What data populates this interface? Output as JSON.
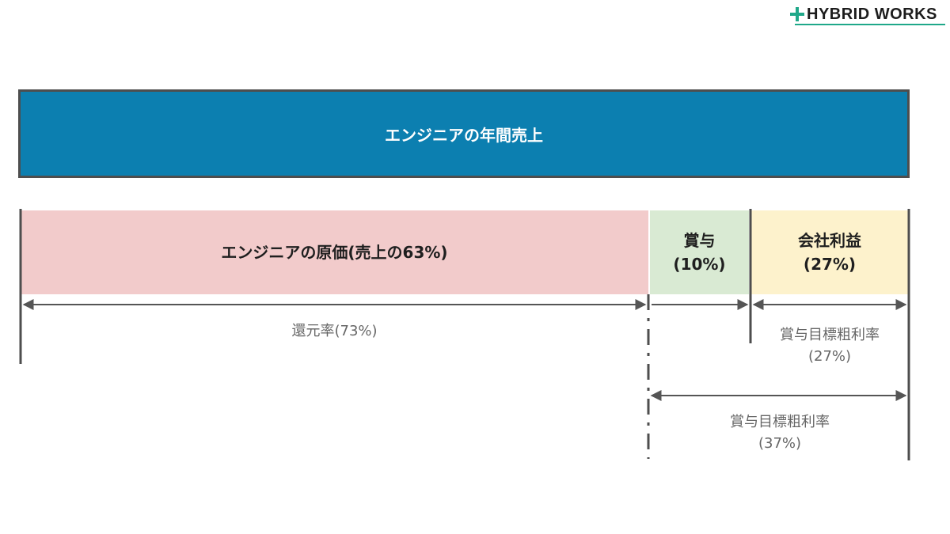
{
  "logo": {
    "text": "HYBRID WORKS",
    "accent_color": "#1fa889"
  },
  "revenue_bar": {
    "label": "エンジニアの年間売上",
    "color": "#0c7fb0"
  },
  "segments": {
    "cost": {
      "label": "エンジニアの原価(売上の63%)",
      "color": "#f2cbcb"
    },
    "bonus": {
      "line1": "賞与",
      "line2": "(10%)",
      "color": "#d9ead3"
    },
    "profit": {
      "line1": "会社利益",
      "line2": "(27%)",
      "color": "#fdf2cc"
    }
  },
  "measures": {
    "return_rate": "還元率(73%)",
    "gross_margin_short": {
      "line1": "賞与目標粗利率",
      "line2": "(27%)"
    },
    "gross_margin_long": {
      "line1": "賞与目標粗利率",
      "line2": "(37%)"
    }
  }
}
